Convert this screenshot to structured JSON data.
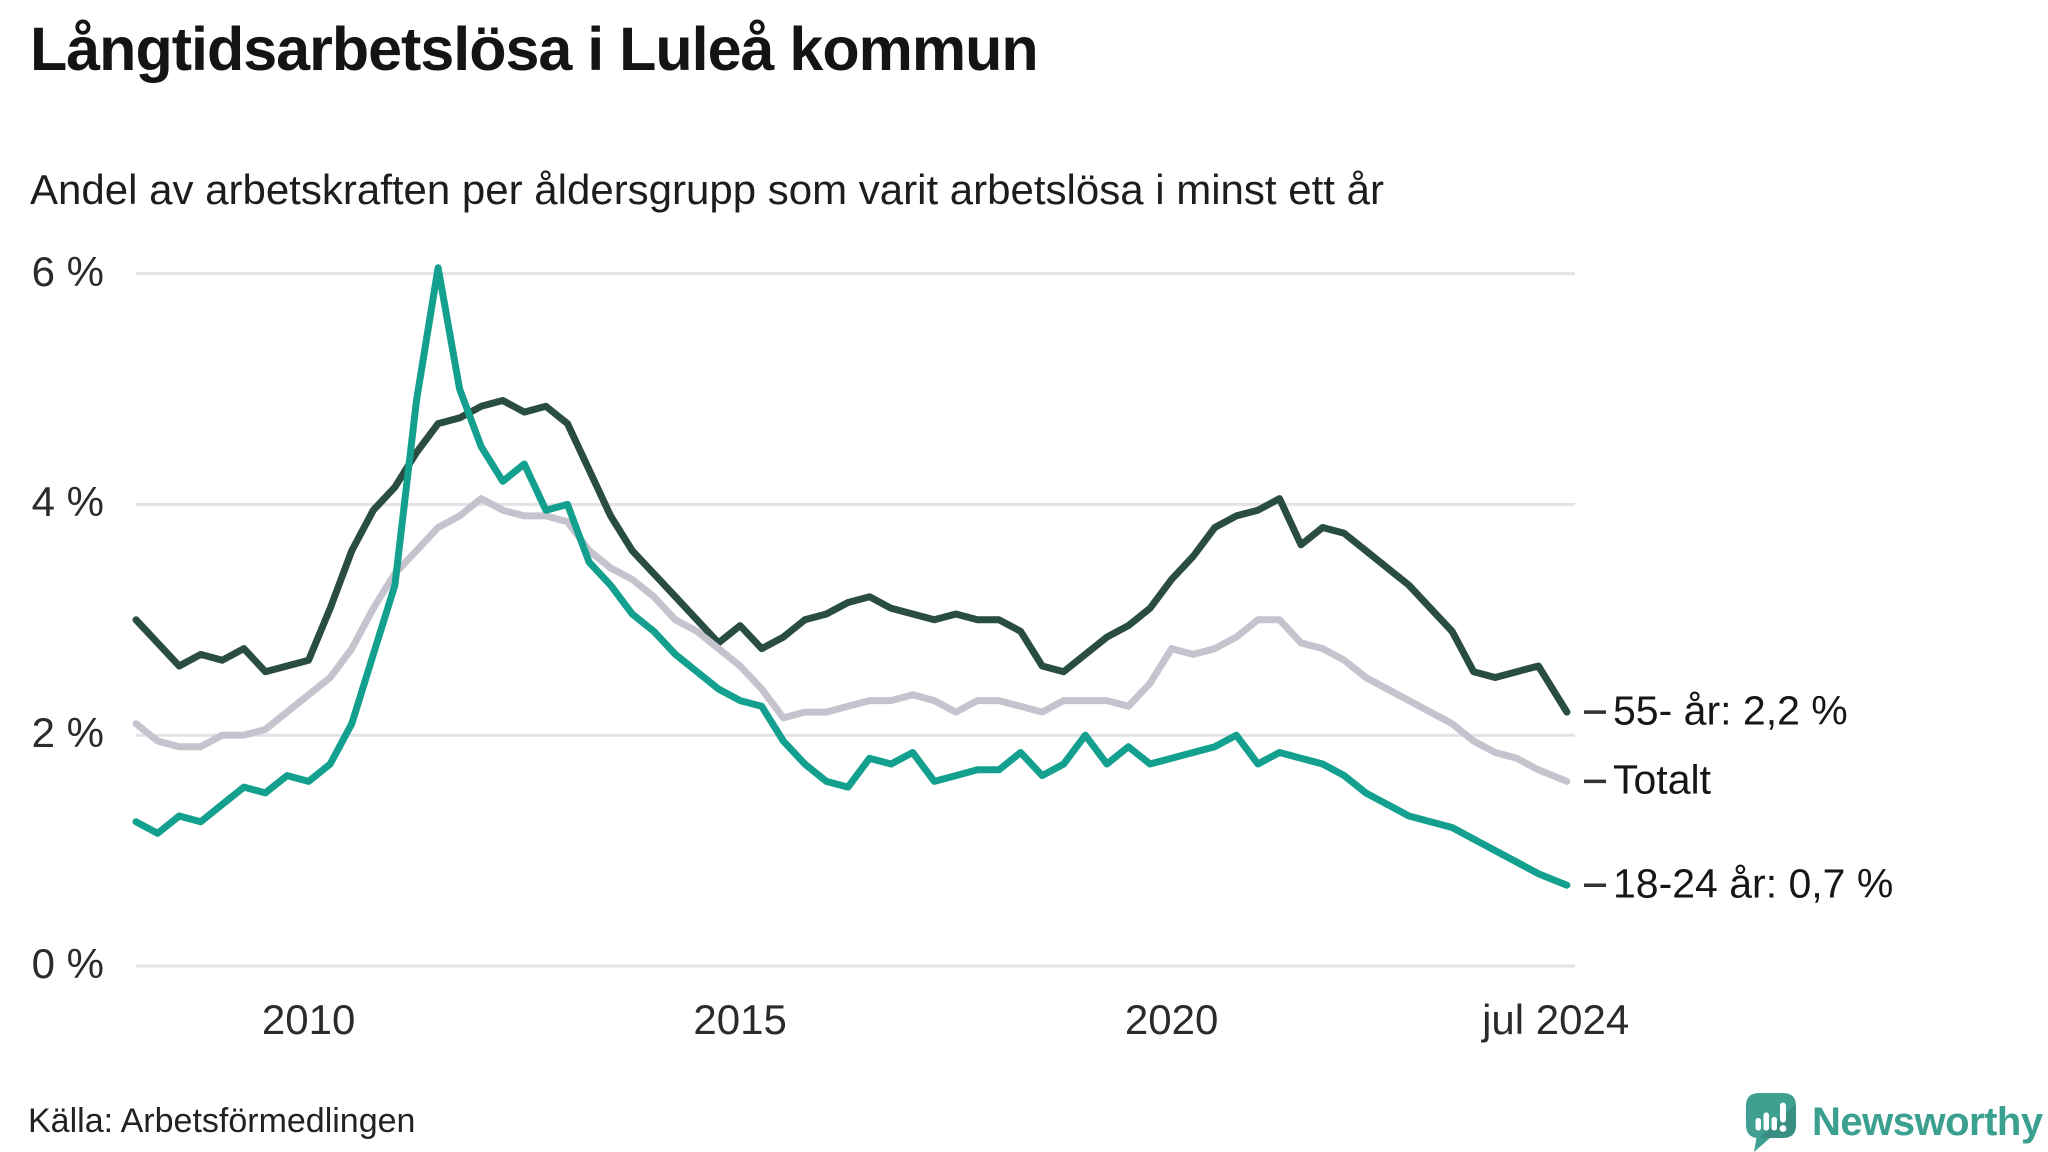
{
  "title": "Långtidsarbetslösa i Luleå kommun",
  "subtitle": "Andel av arbetskraften per åldersgrupp som varit arbetslösa i minst ett år",
  "source": {
    "text": "Källa: Arbetsförmedlingen"
  },
  "brand": {
    "name": "Newsworthy",
    "color": "#3ba08f",
    "bubble_color": "#3f9f90"
  },
  "colors": {
    "grid": "#e3e2e7",
    "axis_text": "#2b2b2b",
    "end_tick": "#333333"
  },
  "chart_data": {
    "type": "line",
    "title": "Långtidsarbetslösa i Luleå kommun",
    "subtitle": "Andel av arbetskraften per åldersgrupp som varit arbetslösa i minst ett år",
    "unit": "% av arbetskraften",
    "x_start": 2008.0,
    "x_step": 0.25,
    "x_last": 2024.58,
    "x_last_label": "jul 2024",
    "ylim": [
      0,
      6.4
    ],
    "grid": "horizontal",
    "legend_position": "right-end-labels",
    "y_ticks": [
      {
        "value": 6,
        "label": "6 %"
      },
      {
        "value": 4,
        "label": "4 %"
      },
      {
        "value": 2,
        "label": "2 %"
      },
      {
        "value": 0,
        "label": "0 %"
      }
    ],
    "x_ticks": [
      {
        "t": 2010.0,
        "label": "2010"
      },
      {
        "t": 2015.0,
        "label": "2015"
      },
      {
        "t": 2020.0,
        "label": "2020"
      },
      {
        "t": 2024.45,
        "label": "jul 2024"
      }
    ],
    "series": [
      {
        "name": "55- år",
        "end_label": "55- år: 2,2 %",
        "end_value": 2.2,
        "color": "#2a4d43",
        "values": [
          3.0,
          2.8,
          2.6,
          2.7,
          2.65,
          2.75,
          2.55,
          2.6,
          2.65,
          3.1,
          3.6,
          3.95,
          4.15,
          4.45,
          4.7,
          4.75,
          4.85,
          4.9,
          4.8,
          4.85,
          4.7,
          4.3,
          3.9,
          3.6,
          3.4,
          3.2,
          3.0,
          2.8,
          2.95,
          2.75,
          2.85,
          3.0,
          3.05,
          3.15,
          3.2,
          3.1,
          3.05,
          3.0,
          3.05,
          3.0,
          3.0,
          2.9,
          2.6,
          2.55,
          2.7,
          2.85,
          2.95,
          3.1,
          3.35,
          3.55,
          3.8,
          3.9,
          3.95,
          4.05,
          3.65,
          3.8,
          3.75,
          3.6,
          3.45,
          3.3,
          3.1,
          2.9,
          2.55,
          2.5,
          2.55,
          2.6,
          2.2
        ]
      },
      {
        "name": "Totalt",
        "end_label": "Totalt",
        "end_value": 1.6,
        "color": "#c6c3cf",
        "values": [
          2.1,
          1.95,
          1.9,
          1.9,
          2.0,
          2.0,
          2.05,
          2.2,
          2.35,
          2.5,
          2.75,
          3.1,
          3.4,
          3.6,
          3.8,
          3.9,
          4.05,
          3.95,
          3.9,
          3.9,
          3.85,
          3.6,
          3.45,
          3.35,
          3.2,
          3.0,
          2.9,
          2.75,
          2.6,
          2.4,
          2.15,
          2.2,
          2.2,
          2.25,
          2.3,
          2.3,
          2.35,
          2.3,
          2.2,
          2.3,
          2.3,
          2.25,
          2.2,
          2.3,
          2.3,
          2.3,
          2.25,
          2.45,
          2.75,
          2.7,
          2.75,
          2.85,
          3.0,
          3.0,
          2.8,
          2.75,
          2.65,
          2.5,
          2.4,
          2.3,
          2.2,
          2.1,
          1.95,
          1.85,
          1.8,
          1.7,
          1.6
        ]
      },
      {
        "name": "18-24 år",
        "end_label": "18-24 år: 0,7 %",
        "end_value": 0.7,
        "color": "#14a08e",
        "values": [
          1.25,
          1.15,
          1.3,
          1.25,
          1.4,
          1.55,
          1.5,
          1.65,
          1.6,
          1.75,
          2.1,
          2.7,
          3.3,
          4.9,
          6.05,
          5.0,
          4.5,
          4.2,
          4.35,
          3.95,
          4.0,
          3.5,
          3.3,
          3.05,
          2.9,
          2.7,
          2.55,
          2.4,
          2.3,
          2.25,
          1.95,
          1.75,
          1.6,
          1.55,
          1.8,
          1.75,
          1.85,
          1.6,
          1.65,
          1.7,
          1.7,
          1.85,
          1.65,
          1.75,
          2.0,
          1.75,
          1.9,
          1.75,
          1.8,
          1.85,
          1.9,
          2.0,
          1.75,
          1.85,
          1.8,
          1.75,
          1.65,
          1.5,
          1.4,
          1.3,
          1.25,
          1.2,
          1.1,
          1.0,
          0.9,
          0.8,
          0.7
        ]
      }
    ]
  }
}
